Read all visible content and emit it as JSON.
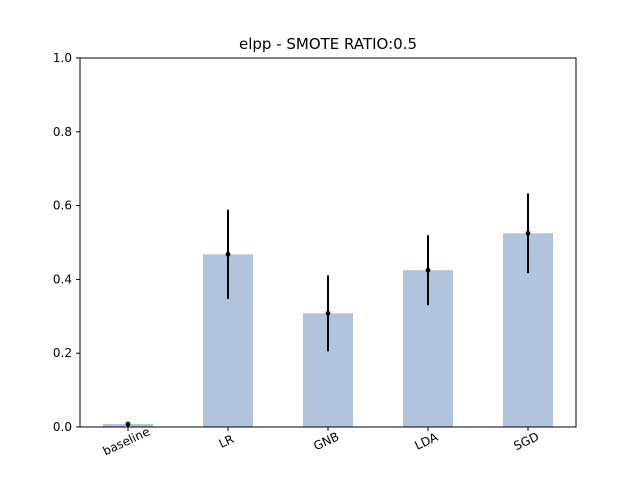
{
  "chart_data": {
    "type": "bar",
    "title": "elpp - SMOTE RATIO:0.5",
    "xlabel": "",
    "ylabel": "",
    "categories": [
      "baseline",
      "LR",
      "GNB",
      "LDA",
      "SGD"
    ],
    "values": [
      0.008,
      0.468,
      0.308,
      0.425,
      0.525
    ],
    "error": [
      0.004,
      0.121,
      0.103,
      0.095,
      0.108
    ],
    "ylim": [
      0,
      1.0
    ],
    "yticks": [
      0.0,
      0.2,
      0.4,
      0.6,
      0.8,
      1.0
    ],
    "ytick_labels": [
      "0.0",
      "0.2",
      "0.4",
      "0.6",
      "0.8",
      "1.0"
    ],
    "grid": false,
    "bar_color": "#b0c4de",
    "error_color": "#000000"
  }
}
